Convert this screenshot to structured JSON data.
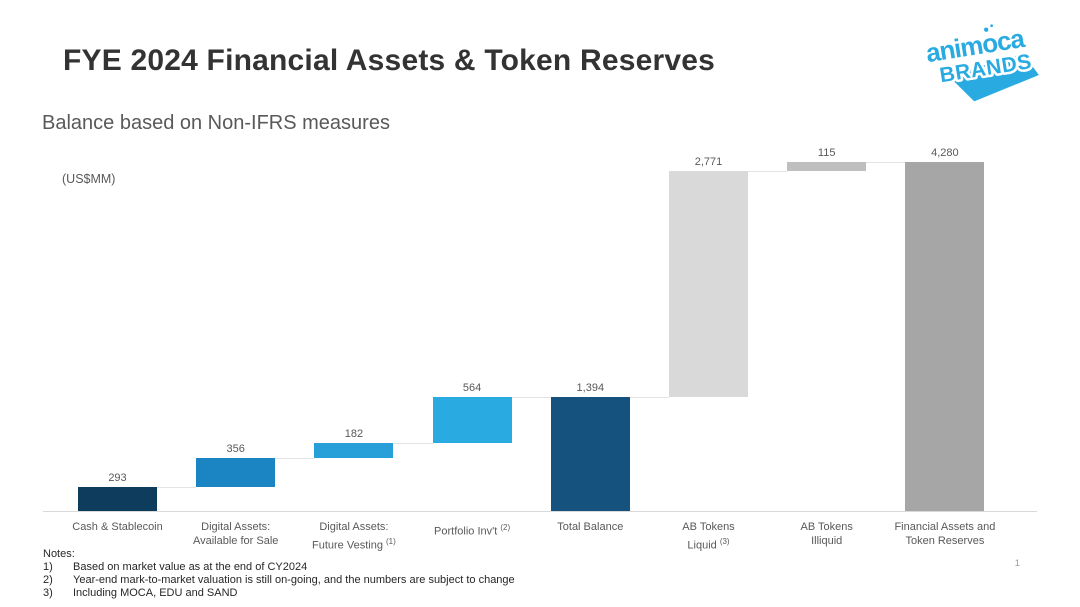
{
  "header": {
    "title": "FYE 2024 Financial Assets & Token Reserves",
    "subtitle": "Balance based on Non-IFRS measures"
  },
  "logo": {
    "line1": "animoca",
    "line2": "BRANDS",
    "color": "#29abe2"
  },
  "chart_data": {
    "type": "bar",
    "subtype": "waterfall",
    "title": "FYE 2024 Financial Assets & Token Reserves",
    "units_label": "(US$MM)",
    "categories": [
      "Cash & Stablecoin",
      "Digital Assets: Available for Sale",
      "Digital Assets: Future Vesting (1)",
      "Portfolio Inv't (2)",
      "Total Balance",
      "AB Tokens Liquid (3)",
      "AB Tokens Illiquid",
      "Financial Assets and Token Reserves"
    ],
    "values": [
      293,
      356,
      182,
      564,
      1394,
      2771,
      115,
      4280
    ],
    "ylim": [
      0,
      4500
    ],
    "grid": false,
    "legend": false,
    "value_label_color": "#595959",
    "category_label_color": "#595959",
    "axis_color": "#d9d9d9",
    "connector_color": "#e3e3e3",
    "bars": [
      {
        "lines": [
          {
            "t": "Cash & Stablecoin"
          }
        ],
        "display": "293",
        "value": 293,
        "start": 0,
        "end": 293,
        "color": "#0d3c5c"
      },
      {
        "lines": [
          {
            "t": "Digital Assets:"
          },
          {
            "t": "Available for Sale"
          }
        ],
        "display": "356",
        "value": 356,
        "start": 293,
        "end": 649,
        "color": "#1a85c2"
      },
      {
        "lines": [
          {
            "t": "Digital Assets:"
          },
          {
            "t": "Future Vesting",
            "s": "(1)"
          }
        ],
        "display": "182",
        "value": 182,
        "start": 649,
        "end": 831,
        "color": "#27a0d9"
      },
      {
        "lines": [
          {
            "t": "Portfolio Inv't",
            "s": "(2)"
          }
        ],
        "display": "564",
        "value": 564,
        "start": 831,
        "end": 1395,
        "color": "#29abe2"
      },
      {
        "lines": [
          {
            "t": "Total Balance"
          }
        ],
        "display": "1,394",
        "value": 1394,
        "start": 0,
        "end": 1394,
        "color": "#15537e"
      },
      {
        "lines": [
          {
            "t": "AB Tokens"
          },
          {
            "t": "Liquid",
            "s": "(3)"
          }
        ],
        "display": "2,771",
        "value": 2771,
        "start": 1394,
        "end": 4165,
        "color": "#d9d9d9"
      },
      {
        "lines": [
          {
            "t": "AB Tokens"
          },
          {
            "t": "Illiquid"
          }
        ],
        "display": "115",
        "value": 115,
        "start": 4165,
        "end": 4280,
        "color": "#bfbfbf"
      },
      {
        "lines": [
          {
            "t": "Financial Assets and"
          },
          {
            "t": "Token Reserves"
          }
        ],
        "display": "4,280",
        "value": 4280,
        "start": 0,
        "end": 4280,
        "color": "#a6a6a6"
      }
    ]
  },
  "notes": {
    "heading": "Notes:",
    "items": [
      {
        "num": "1)",
        "text": "Based on market value as at the end of CY2024"
      },
      {
        "num": "2)",
        "text": "Year-end mark-to-market valuation is still on-going, and the numbers are subject to change"
      },
      {
        "num": "3)",
        "text": "Including MOCA, EDU and SAND"
      }
    ]
  },
  "footer": {
    "page_number": "1"
  }
}
